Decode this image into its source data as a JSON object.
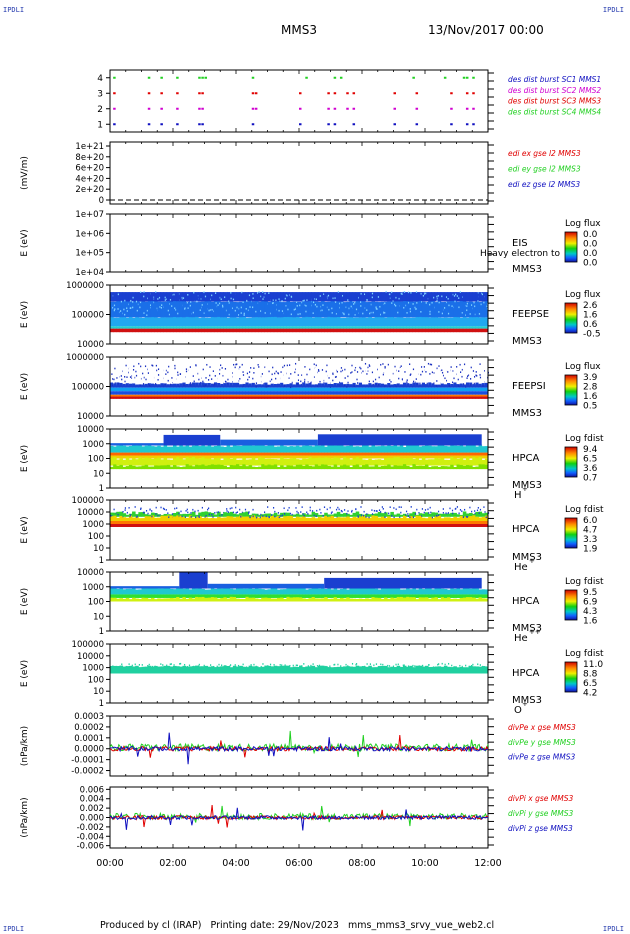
{
  "header": {
    "corner_label": "IPDLI",
    "title_left": "MMS3",
    "title_right": "13/Nov/2017 00:00"
  },
  "footer": {
    "produced_by": "Produced by cl (IRAP)",
    "printing_date": "Printing date: 29/Nov/2023",
    "filename": "mms_mms3_srvy_vue_web2.cl"
  },
  "colors": {
    "red": "#e00000",
    "green": "#22d022",
    "blue": "#1010c0",
    "magenta": "#d000d0",
    "spectro_high": "#d01010",
    "spectro_low": "#1a3fd0"
  },
  "chart_data": [
    {
      "type": "scatter",
      "id": "burst",
      "ylabel": "",
      "ylim": [
        0.5,
        4.5
      ],
      "yticks": [
        "1",
        "2",
        "3",
        "4"
      ],
      "legend": [
        "des dist burst SC1 MMS1",
        "des dist burst SC2 MMS2",
        "des dist burst SC3 MMS3",
        "des dist burst SC4 MMS4"
      ],
      "legend_colors": [
        "#1010c0",
        "#d000d0",
        "#e00000",
        "#22d022"
      ],
      "series": [
        {
          "level": 4,
          "color": "#22d022",
          "x": [
            0.1,
            1.2,
            1.6,
            2.1,
            2.8,
            2.9,
            3.0,
            4.5,
            6.2,
            7.1,
            7.3,
            9.6,
            10.6,
            11.2,
            11.3,
            11.5
          ]
        },
        {
          "level": 3,
          "color": "#e00000",
          "x": [
            0.1,
            1.2,
            1.6,
            2.1,
            2.8,
            2.9,
            4.5,
            4.6,
            6.0,
            6.9,
            7.1,
            7.5,
            7.7,
            9.0,
            9.7,
            10.8,
            11.3,
            11.5
          ]
        },
        {
          "level": 2,
          "color": "#d000d0",
          "x": [
            0.1,
            1.2,
            1.6,
            2.1,
            2.8,
            2.9,
            4.5,
            4.6,
            6.0,
            6.9,
            7.1,
            7.5,
            7.7,
            9.0,
            9.7,
            10.8,
            11.3,
            11.5
          ]
        },
        {
          "level": 1,
          "color": "#1010c0",
          "x": [
            0.1,
            1.2,
            1.6,
            2.1,
            2.8,
            2.9,
            4.5,
            6.0,
            6.9,
            7.1,
            7.7,
            9.0,
            9.7,
            10.8,
            11.3,
            11.5
          ]
        }
      ]
    },
    {
      "type": "line",
      "id": "edi",
      "ylabel": "(mV/m)",
      "ylim": [
        0,
        1e+21
      ],
      "yticks": [
        "0",
        "2e+20",
        "4e+20",
        "6e+20",
        "8e+20",
        "1e+21"
      ],
      "legend": [
        "edi ex gse l2 MMS3",
        "edi ey gse l2 MMS3",
        "edi ez gse l2 MMS3"
      ],
      "legend_colors": [
        "#e00000",
        "#22d022",
        "#1010c0"
      ]
    },
    {
      "type": "heatmap",
      "id": "eis",
      "ylabel": "E (eV)",
      "yticks": [
        "1e+04",
        "1e+05",
        "1e+06",
        "1e+07"
      ],
      "instrument": [
        "EIS",
        "MMS3"
      ],
      "overlay_label": "Heavy electron to",
      "colorbar": {
        "title": "Log flux",
        "ticks": [
          "0.0",
          "0.0",
          "0.0",
          "0.0"
        ]
      }
    },
    {
      "type": "heatmap",
      "id": "feepse",
      "ylabel": "E (eV)",
      "yticks": [
        "10000",
        "100000",
        "1000000"
      ],
      "instrument": [
        "FEEPSE",
        "MMS3"
      ],
      "colorbar": {
        "title": "Log flux",
        "ticks": [
          "2.6",
          "1.6",
          "0.6",
          "-0.5"
        ]
      }
    },
    {
      "type": "heatmap",
      "id": "feepsi",
      "ylabel": "E (eV)",
      "yticks": [
        "10000",
        "100000",
        "1000000"
      ],
      "instrument": [
        "FEEPSI",
        "MMS3"
      ],
      "colorbar": {
        "title": "Log flux",
        "ticks": [
          "3.9",
          "2.8",
          "1.6",
          "0.5"
        ]
      }
    },
    {
      "type": "heatmap",
      "id": "hpca_h",
      "ylabel": "E (eV)",
      "yticks": [
        "1",
        "10",
        "100",
        "1000",
        "10000"
      ],
      "instrument": [
        "HPCA",
        "MMS3"
      ],
      "species": "H",
      "species_charge": "+",
      "colorbar": {
        "title": "Log fdist",
        "ticks": [
          "9.4",
          "6.5",
          "3.6",
          "0.7"
        ]
      }
    },
    {
      "type": "heatmap",
      "id": "hpca_he",
      "ylabel": "E (eV)",
      "yticks": [
        "1",
        "10",
        "100",
        "1000",
        "10000",
        "100000"
      ],
      "instrument": [
        "HPCA",
        "MMS3"
      ],
      "species": "He",
      "species_charge": "+",
      "colorbar": {
        "title": "Log fdist",
        "ticks": [
          "6.0",
          "4.7",
          "3.3",
          "1.9"
        ]
      }
    },
    {
      "type": "heatmap",
      "id": "hpca_hepp",
      "ylabel": "E (eV)",
      "yticks": [
        "1",
        "10",
        "100",
        "1000",
        "10000"
      ],
      "instrument": [
        "HPCA",
        "MMS3"
      ],
      "species": "He",
      "species_charge": "++",
      "colorbar": {
        "title": "Log fdist",
        "ticks": [
          "9.5",
          "6.9",
          "4.3",
          "1.6"
        ]
      }
    },
    {
      "type": "heatmap",
      "id": "hpca_o",
      "ylabel": "E (eV)",
      "yticks": [
        "1",
        "10",
        "100",
        "1000",
        "10000",
        "100000"
      ],
      "instrument": [
        "HPCA",
        "MMS3"
      ],
      "species": "O",
      "species_charge": "+",
      "colorbar": {
        "title": "Log fdist",
        "ticks": [
          "11.0",
          "8.8",
          "6.5",
          "4.2"
        ]
      }
    },
    {
      "type": "line",
      "id": "divpe",
      "ylabel": "(nPa/km)",
      "ylim": [
        -0.00025,
        0.0003
      ],
      "yticks": [
        "-0.0002",
        "-0.0001",
        "0.0000",
        "0.0001",
        "0.0002",
        "0.0003"
      ],
      "legend": [
        "divPe x gse MMS3",
        "divPe y gse MMS3",
        "divPe z gse MMS3"
      ],
      "legend_colors": [
        "#e00000",
        "#22d022",
        "#1010c0"
      ]
    },
    {
      "type": "line",
      "id": "divpi",
      "ylabel": "(nPa/km)",
      "ylim": [
        -0.0065,
        0.0065
      ],
      "yticks": [
        "-0.006",
        "-0.004",
        "-0.002",
        "0.000",
        "0.002",
        "0.004",
        "0.006"
      ],
      "legend": [
        "divPi x gse MMS3",
        "divPi y gse MMS3",
        "divPi z gse MMS3"
      ],
      "legend_colors": [
        "#e00000",
        "#22d022",
        "#1010c0"
      ]
    }
  ],
  "x_axis": {
    "range_hours": [
      0,
      12
    ],
    "tick_labels": [
      "00:00",
      "02:00",
      "04:00",
      "06:00",
      "08:00",
      "10:00",
      "12:00"
    ]
  }
}
